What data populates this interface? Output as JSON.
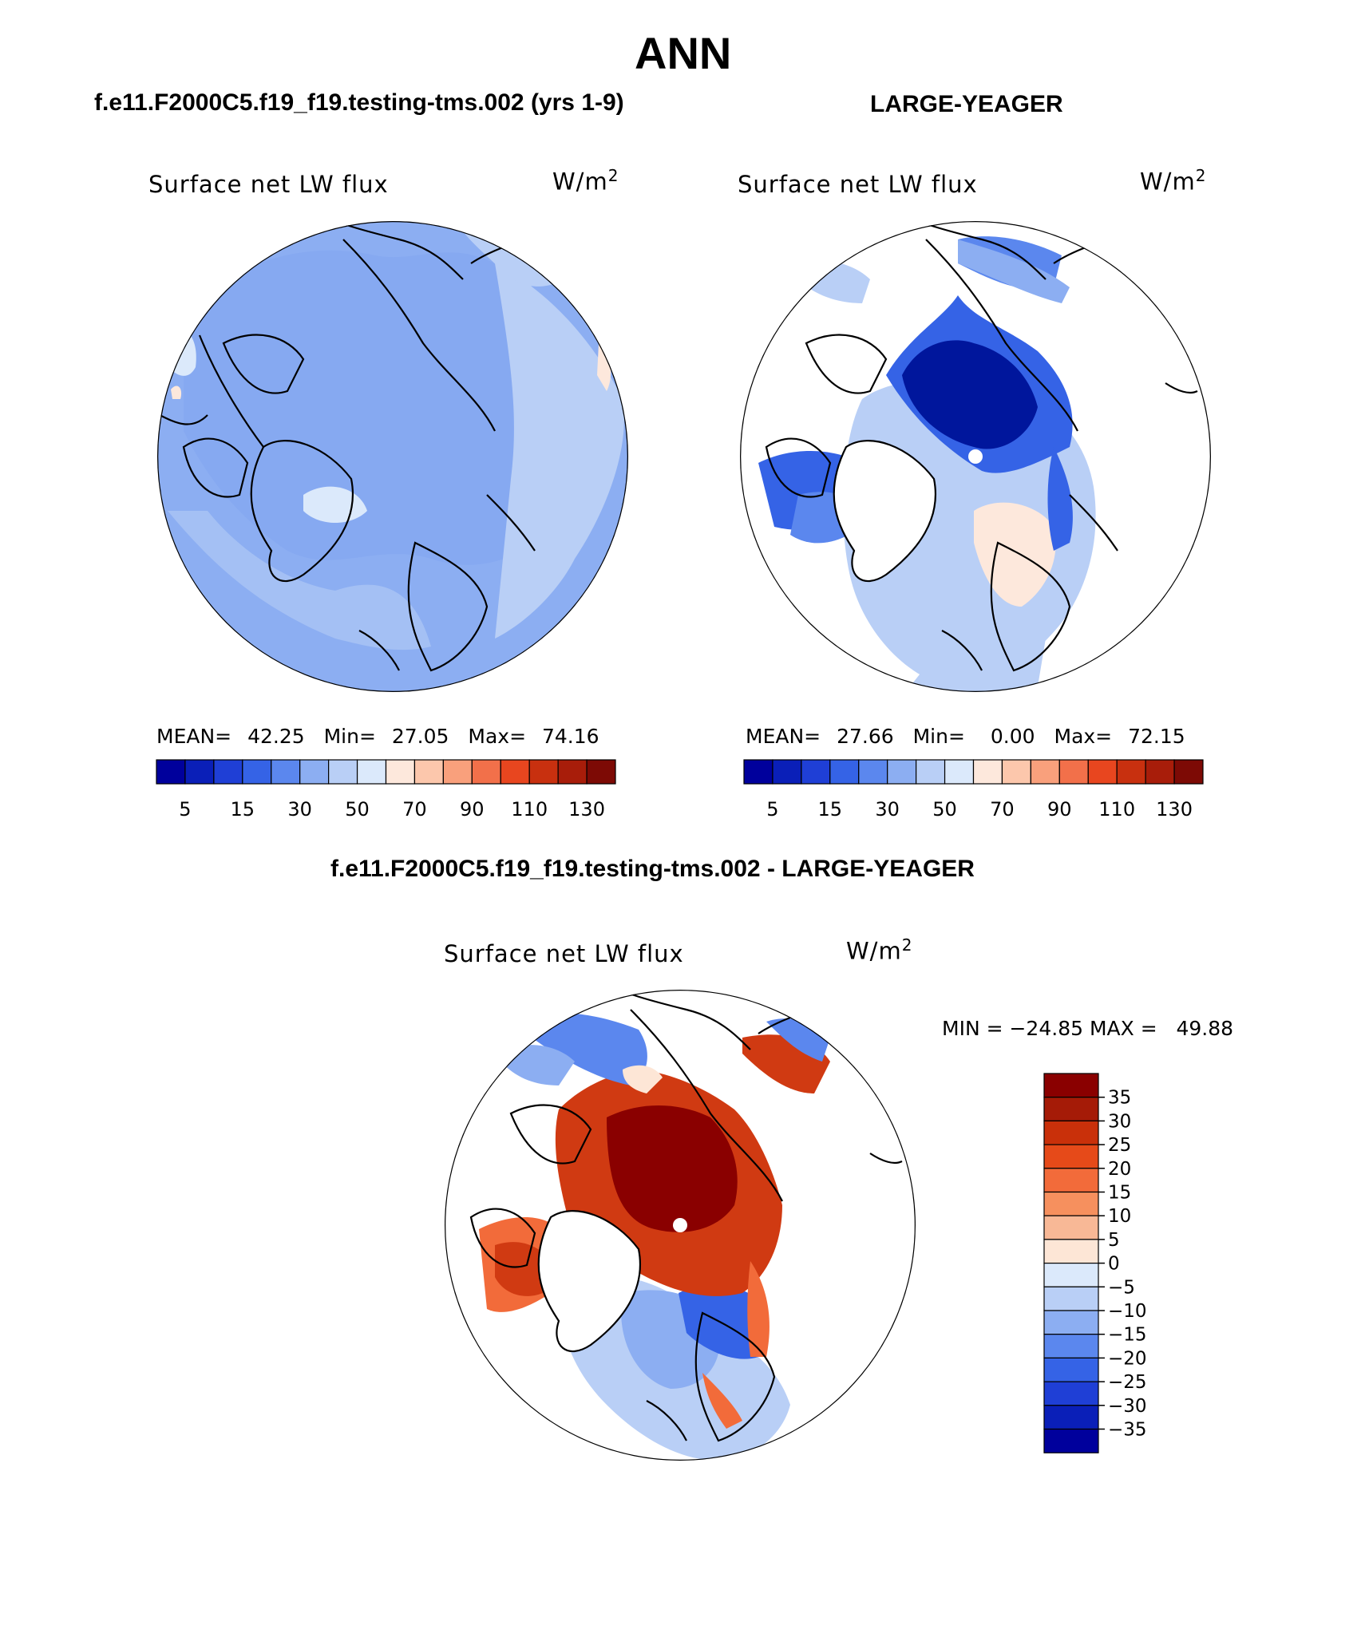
{
  "page_title": "ANN",
  "panels": [
    {
      "case_title": "f.e11.F2000C5.f19_f19.testing-tms.002 (yrs 1-9)",
      "variable": "Surface net LW flux",
      "units_base": "W/m",
      "units_exp": "2",
      "stats": {
        "mean_label": "MEAN=",
        "mean": "42.25",
        "min_label": "Min=",
        "min": "27.05",
        "max_label": "Max=",
        "max": "74.16"
      }
    },
    {
      "case_title": "LARGE-YEAGER",
      "variable": "Surface net LW flux",
      "units_base": "W/m",
      "units_exp": "2",
      "stats": {
        "mean_label": "MEAN=",
        "mean": "27.66",
        "min_label": "Min=",
        "min": "0.00",
        "max_label": "Max=",
        "max": "72.15"
      }
    }
  ],
  "abs_colorbar": {
    "colors": [
      "#00009c",
      "#0a1fb8",
      "#1f3fd6",
      "#3563e6",
      "#5b87ee",
      "#8caef2",
      "#b9cff6",
      "#dbe9fb",
      "#fde8dc",
      "#fcc7ac",
      "#f9a07c",
      "#f2704a",
      "#e8461f",
      "#c8300f",
      "#a81d0a",
      "#7d0a05"
    ],
    "tick_labels": [
      "5",
      "15",
      "30",
      "50",
      "70",
      "90",
      "110",
      "130"
    ]
  },
  "diff_panel": {
    "title": "f.e11.F2000C5.f19_f19.testing-tms.002 - LARGE-YEAGER",
    "variable": "Surface net LW flux",
    "units_base": "W/m",
    "units_exp": "2",
    "minmax": "MIN = −24.85 MAX =   49.88"
  },
  "diff_colorbar": {
    "colors": [
      "#8a0000",
      "#a51b07",
      "#c9300a",
      "#e64a19",
      "#f26b3a",
      "#f6905e",
      "#f8b896",
      "#fde6d6",
      "#dbe9fb",
      "#b9cff6",
      "#8caef2",
      "#5b87ee",
      "#3563e6",
      "#1f3fd6",
      "#0a1fb8",
      "#00009c"
    ],
    "tick_labels": [
      "35",
      "30",
      "25",
      "20",
      "15",
      "10",
      "5",
      "0",
      "−5",
      "−10",
      "−15",
      "−20",
      "−25",
      "−30",
      "−35"
    ]
  },
  "map_colors": {
    "ocean_mid_blue": "#8caef2",
    "pale_blue": "#b9cff6",
    "very_pale_blue": "#dbe9fb",
    "deep_blue": "#00169c",
    "medium_blue": "#3563e6",
    "dark_red": "#8a0000",
    "red": "#d03a12",
    "orange": "#f26b3a",
    "peach": "#fde6d6"
  }
}
